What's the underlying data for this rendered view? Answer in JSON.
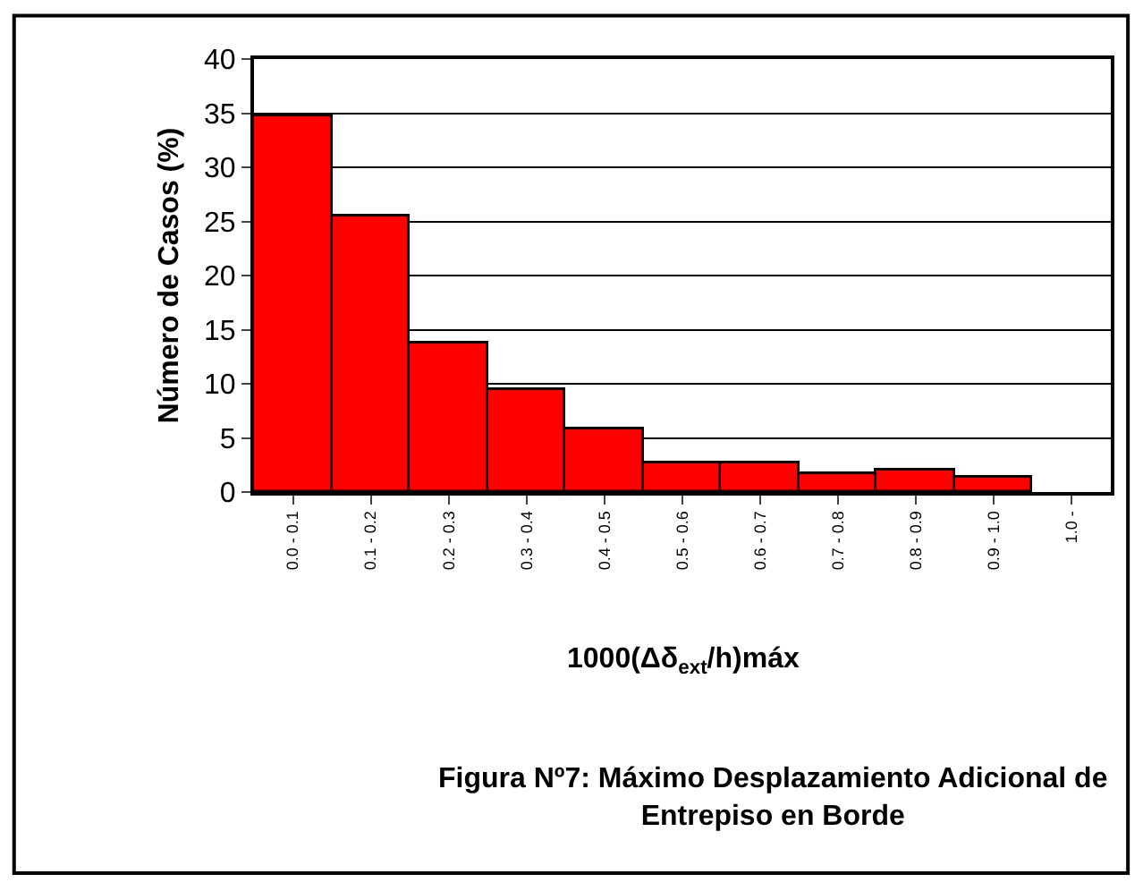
{
  "chart_data": {
    "type": "bar",
    "categories": [
      "0.0 - 0.1",
      "0.1 - 0.2",
      "0.2 - 0.3",
      "0.3 - 0.4",
      "0.4 - 0.5",
      "0.5 - 0.6",
      "0.6 - 0.7",
      "0.7 - 0.8",
      "0.8 - 0.9",
      "0.9 - 1.0",
      "1.0 -"
    ],
    "values": [
      34.7,
      25.4,
      13.7,
      9.4,
      5.8,
      2.7,
      2.7,
      1.7,
      2.0,
      1.4,
      0
    ],
    "color": "#ff0000",
    "ylabel": "Número de Casos (%)",
    "xlabel": "1000(Δδ$_{ext}$/h)máx",
    "ylim": [
      0,
      40
    ],
    "yticks": [
      0,
      5,
      10,
      15,
      20,
      25,
      30,
      35,
      40
    ],
    "grid": "y",
    "annotations": [
      "Figura Nº7: Máximo Desplazamiento Adicional de Entrepiso en Borde"
    ]
  }
}
